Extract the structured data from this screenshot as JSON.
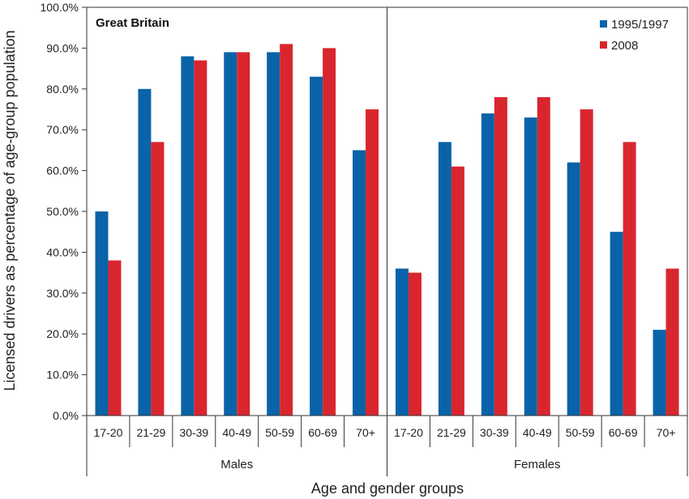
{
  "chart_data": {
    "type": "bar",
    "annotation": "Great Britain",
    "xlabel": "Age and gender groups",
    "ylabel": "Licensed drivers as percentage of age-group population",
    "ylim": [
      0,
      100
    ],
    "yticks": [
      "0.0%",
      "10.0%",
      "20.0%",
      "30.0%",
      "40.0%",
      "50.0%",
      "60.0%",
      "70.0%",
      "80.0%",
      "90.0%",
      "100.0%"
    ],
    "legend_position": "top-right",
    "groups": [
      {
        "name": "Males",
        "categories": [
          "17-20",
          "21-29",
          "30-39",
          "40-49",
          "50-59",
          "60-69",
          "70+"
        ]
      },
      {
        "name": "Females",
        "categories": [
          "17-20",
          "21-29",
          "30-39",
          "40-49",
          "50-59",
          "60-69",
          "70+"
        ]
      }
    ],
    "series": [
      {
        "name": "1995/1997",
        "color": "#0a63a8",
        "values": [
          50,
          80,
          88,
          89,
          89,
          83,
          65,
          36,
          67,
          74,
          73,
          62,
          45,
          21
        ]
      },
      {
        "name": "2008",
        "color": "#d9262e",
        "values": [
          38,
          67,
          87,
          89,
          91,
          90,
          75,
          35,
          61,
          78,
          78,
          75,
          67,
          36
        ]
      }
    ],
    "grid": false
  }
}
